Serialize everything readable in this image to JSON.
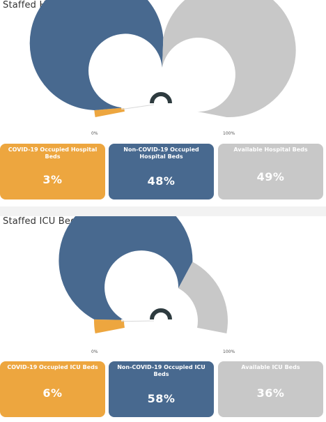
{
  "colors": {
    "covid": "#eda63f",
    "non_covid": "#48698f",
    "available": "#c8c8c8",
    "background": "#f2f2f2",
    "panel": "#ffffff",
    "gauge_center_ring": "#2e3b3f"
  },
  "hospital": {
    "title": "Staffed Hospital Bed Capacity",
    "gauge": {
      "min_label": "0%",
      "max_label": "100%",
      "covid_value": 3,
      "non_covid_value": 48,
      "available_value": 49,
      "icon": "arc-gauge-icon"
    },
    "cards": [
      {
        "label": "COVID-19 Occupied Hospital Beds",
        "value": "3%"
      },
      {
        "label": "Non-COVID-19 Occupied Hospital Beds",
        "value": "48%"
      },
      {
        "label": "Available Hospital Beds",
        "value": "49%"
      }
    ]
  },
  "icu": {
    "title": "Staffed ICU Bed Capacity",
    "gauge": {
      "min_label": "0%",
      "max_label": "100%",
      "covid_value": 6,
      "non_covid_value": 58,
      "available_value": 36,
      "icon": "arc-gauge-icon"
    },
    "cards": [
      {
        "label": "COVID-19 Occupied ICU Beds",
        "value": "6%"
      },
      {
        "label": "Non-COVID-19 Occupied ICU Beds",
        "value": "58%"
      },
      {
        "label": "Available ICU Beds",
        "value": "36%"
      }
    ]
  }
}
